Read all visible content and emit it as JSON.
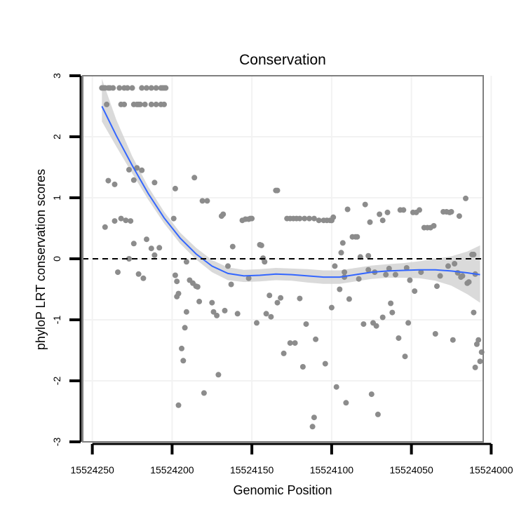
{
  "chart_data": {
    "type": "scatter",
    "title": "Conservation",
    "xlabel": "Genomic Position",
    "ylabel": "phyloP LRT conservation scores",
    "x_reversed": true,
    "xlim": [
      15524005,
      15524256
    ],
    "ylim": [
      -3,
      3
    ],
    "x_ticks": [
      15524250,
      15524200,
      15524150,
      15524100,
      15524050,
      15524000
    ],
    "x_tick_labels": [
      "15524250",
      "15524200",
      "15524150",
      "15524100",
      "15524050",
      "15524000"
    ],
    "y_ticks": [
      -3,
      -2,
      -1,
      0,
      1,
      2,
      3
    ],
    "y_tick_labels": [
      "-3",
      "-2",
      "-1",
      "0",
      "1",
      "2",
      "3"
    ],
    "reference_line": {
      "y": 0,
      "style": "dashed"
    },
    "colors": {
      "points": "#8c8c8c",
      "smooth": "#3366ff",
      "band": "#d3d3d3",
      "border": "#7f7f7f",
      "grid": "#f2f2f2"
    },
    "points": [
      [
        15524244,
        2.8
      ],
      [
        15524243,
        2.8
      ],
      [
        15524242,
        2.8
      ],
      [
        15524240,
        2.8
      ],
      [
        15524239,
        2.8
      ],
      [
        15524237,
        2.8
      ],
      [
        15524233,
        2.8
      ],
      [
        15524230,
        2.8
      ],
      [
        15524228,
        2.8
      ],
      [
        15524225,
        2.8
      ],
      [
        15524219,
        2.8
      ],
      [
        15524216,
        2.8
      ],
      [
        15524213,
        2.8
      ],
      [
        15524210,
        2.8
      ],
      [
        15524207,
        2.8
      ],
      [
        15524206,
        2.8
      ],
      [
        15524205,
        2.8
      ],
      [
        15524204,
        2.8
      ],
      [
        15524241,
        2.53
      ],
      [
        15524232,
        2.53
      ],
      [
        15524230,
        2.53
      ],
      [
        15524224,
        2.53
      ],
      [
        15524222,
        2.53
      ],
      [
        15524221,
        2.53
      ],
      [
        15524220,
        2.53
      ],
      [
        15524217,
        2.53
      ],
      [
        15524213,
        2.53
      ],
      [
        15524210,
        2.53
      ],
      [
        15524207,
        2.53
      ],
      [
        15524205,
        2.53
      ],
      [
        15524240,
        1.28
      ],
      [
        15524236,
        1.22
      ],
      [
        15524227,
        1.46
      ],
      [
        15524222,
        1.49
      ],
      [
        15524219,
        1.45
      ],
      [
        15524224,
        1.29
      ],
      [
        15524211,
        1.25
      ],
      [
        15524198,
        1.15
      ],
      [
        15524186,
        1.33
      ],
      [
        15524242,
        0.52
      ],
      [
        15524236,
        0.62
      ],
      [
        15524232,
        0.66
      ],
      [
        15524229,
        0.63
      ],
      [
        15524226,
        0.62
      ],
      [
        15524234,
        -0.22
      ],
      [
        15524227,
        0.0
      ],
      [
        15524224,
        0.25
      ],
      [
        15524221,
        -0.25
      ],
      [
        15524218,
        -0.32
      ],
      [
        15524216,
        0.32
      ],
      [
        15524213,
        0.17
      ],
      [
        15524211,
        0.06
      ],
      [
        15524208,
        0.18
      ],
      [
        15524199,
        0.66
      ],
      [
        15524198,
        -0.27
      ],
      [
        15524197,
        -0.37
      ],
      [
        15524197,
        -0.62
      ],
      [
        15524196,
        -0.57
      ],
      [
        15524194,
        -1.47
      ],
      [
        15524193,
        -1.67
      ],
      [
        15524196,
        -2.4
      ],
      [
        15524192,
        -1.13
      ],
      [
        15524191,
        -0.87
      ],
      [
        15524191,
        -0.05
      ],
      [
        15524189,
        -0.35
      ],
      [
        15524187,
        -0.4
      ],
      [
        15524185,
        -0.45
      ],
      [
        15524184,
        -0.46
      ],
      [
        15524183,
        -0.7
      ],
      [
        15524181,
        0.95
      ],
      [
        15524178,
        0.95
      ],
      [
        15524180,
        -2.2
      ],
      [
        15524175,
        -0.72
      ],
      [
        15524174,
        -0.87
      ],
      [
        15524172,
        -0.93
      ],
      [
        15524171,
        -1.9
      ],
      [
        15524169,
        0.7
      ],
      [
        15524168,
        0.73
      ],
      [
        15524167,
        -0.85
      ],
      [
        15524165,
        -0.12
      ],
      [
        15524163,
        -0.42
      ],
      [
        15524162,
        0.2
      ],
      [
        15524159,
        -0.9
      ],
      [
        15524156,
        0.63
      ],
      [
        15524154,
        0.65
      ],
      [
        15524152,
        0.65
      ],
      [
        15524151,
        0.66
      ],
      [
        15524150,
        0.66
      ],
      [
        15524152,
        -0.32
      ],
      [
        15524147,
        -1.05
      ],
      [
        15524145,
        0.23
      ],
      [
        15524144,
        0.22
      ],
      [
        15524143,
        0.01
      ],
      [
        15524142,
        -0.05
      ],
      [
        15524141,
        -0.9
      ],
      [
        15524139,
        -0.6
      ],
      [
        15524138,
        -0.95
      ],
      [
        15524135,
        1.12
      ],
      [
        15524134,
        1.12
      ],
      [
        15524134,
        -0.72
      ],
      [
        15524132,
        -0.64
      ],
      [
        15524130,
        -1.55
      ],
      [
        15524128,
        0.66
      ],
      [
        15524126,
        0.66
      ],
      [
        15524124,
        0.66
      ],
      [
        15524122,
        0.66
      ],
      [
        15524126,
        -1.38
      ],
      [
        15524123,
        -1.38
      ],
      [
        15524120,
        0.66
      ],
      [
        15524117,
        0.66
      ],
      [
        15524114,
        0.66
      ],
      [
        15524111,
        0.66
      ],
      [
        15524108,
        0.63
      ],
      [
        15524105,
        0.63
      ],
      [
        15524103,
        0.63
      ],
      [
        15524101,
        0.63
      ],
      [
        15524100,
        0.63
      ],
      [
        15524120,
        -0.65
      ],
      [
        15524118,
        -1.77
      ],
      [
        15524116,
        -1.07
      ],
      [
        15524110,
        -1.32
      ],
      [
        15524112,
        -2.75
      ],
      [
        15524111,
        -2.6
      ],
      [
        15524104,
        -1.72
      ],
      [
        15524100,
        -0.8
      ],
      [
        15524100,
        0.63
      ],
      [
        15524099,
        0.68
      ],
      [
        15524098,
        -0.12
      ],
      [
        15524097,
        -2.1
      ],
      [
        15524095,
        -0.5
      ],
      [
        15524094,
        0.1
      ],
      [
        15524093,
        0.26
      ],
      [
        15524092,
        -0.22
      ],
      [
        15524092,
        -0.3
      ],
      [
        15524091,
        -2.36
      ],
      [
        15524090,
        0.81
      ],
      [
        15524089,
        -0.66
      ],
      [
        15524087,
        0.36
      ],
      [
        15524085,
        0.36
      ],
      [
        15524084,
        0.36
      ],
      [
        15524083,
        -0.33
      ],
      [
        15524082,
        0.03
      ],
      [
        15524080,
        -1.07
      ],
      [
        15524079,
        0.89
      ],
      [
        15524077,
        -0.18
      ],
      [
        15524077,
        0.05
      ],
      [
        15524076,
        0.6
      ],
      [
        15524075,
        -2.22
      ],
      [
        15524074,
        -1.05
      ],
      [
        15524073,
        -0.22
      ],
      [
        15524072,
        -1.1
      ],
      [
        15524071,
        -2.55
      ],
      [
        15524070,
        0.73
      ],
      [
        15524068,
        -0.96
      ],
      [
        15524068,
        0.63
      ],
      [
        15524066,
        -0.26
      ],
      [
        15524065,
        0.76
      ],
      [
        15524064,
        -0.16
      ],
      [
        15524063,
        -0.73
      ],
      [
        15524062,
        -0.88
      ],
      [
        15524060,
        -0.26
      ],
      [
        15524058,
        -1.3
      ],
      [
        15524057,
        0.8
      ],
      [
        15524055,
        0.8
      ],
      [
        15524054,
        -1.6
      ],
      [
        15524053,
        -0.15
      ],
      [
        15524052,
        -1.05
      ],
      [
        15524051,
        -0.35
      ],
      [
        15524049,
        0.76
      ],
      [
        15524048,
        -0.53
      ],
      [
        15524047,
        0.76
      ],
      [
        15524045,
        0.8
      ],
      [
        15524044,
        -0.22
      ],
      [
        15524042,
        0.51
      ],
      [
        15524040,
        0.51
      ],
      [
        15524038,
        0.51
      ],
      [
        15524036,
        0.54
      ],
      [
        15524034,
        -0.45
      ],
      [
        15524035,
        -1.23
      ],
      [
        15524032,
        -0.28
      ],
      [
        15524030,
        0.77
      ],
      [
        15524028,
        0.77
      ],
      [
        15524027,
        -0.12
      ],
      [
        15524026,
        0.76
      ],
      [
        15524025,
        0.77
      ],
      [
        15524024,
        -1.33
      ],
      [
        15524023,
        -0.08
      ],
      [
        15524021,
        -0.23
      ],
      [
        15524020,
        0.7
      ],
      [
        15524019,
        -0.3
      ],
      [
        15524018,
        -0.28
      ],
      [
        15524016,
        0.99
      ],
      [
        15524015,
        -0.4
      ],
      [
        15524014,
        -0.38
      ],
      [
        15524012,
        0.07
      ],
      [
        15524011,
        0.07
      ],
      [
        15524011,
        -0.88
      ],
      [
        15524010,
        -1.78
      ],
      [
        15524009,
        -1.4
      ],
      [
        15524008,
        -1.33
      ],
      [
        15524007,
        -1.68
      ],
      [
        15524006,
        -1.53
      ],
      [
        15524010,
        -0.25
      ]
    ],
    "smooth": {
      "x": [
        15524244,
        15524235,
        15524225,
        15524215,
        15524205,
        15524195,
        15524185,
        15524175,
        15524165,
        15524155,
        15524145,
        15524135,
        15524125,
        15524115,
        15524105,
        15524095,
        15524085,
        15524075,
        15524065,
        15524055,
        15524045,
        15524035,
        15524025,
        15524015,
        15524007
      ],
      "y": [
        2.5,
        2.02,
        1.53,
        1.07,
        0.67,
        0.34,
        0.08,
        -0.12,
        -0.24,
        -0.28,
        -0.27,
        -0.25,
        -0.26,
        -0.28,
        -0.3,
        -0.3,
        -0.26,
        -0.22,
        -0.2,
        -0.19,
        -0.18,
        -0.18,
        -0.2,
        -0.23,
        -0.26
      ],
      "lo": [
        2.25,
        1.84,
        1.4,
        0.97,
        0.58,
        0.25,
        -0.01,
        -0.22,
        -0.35,
        -0.38,
        -0.37,
        -0.35,
        -0.36,
        -0.39,
        -0.41,
        -0.41,
        -0.37,
        -0.33,
        -0.31,
        -0.31,
        -0.32,
        -0.36,
        -0.44,
        -0.58,
        -0.72
      ],
      "hi": [
        2.95,
        2.28,
        1.68,
        1.18,
        0.77,
        0.43,
        0.18,
        -0.02,
        -0.14,
        -0.18,
        -0.17,
        -0.15,
        -0.16,
        -0.17,
        -0.19,
        -0.19,
        -0.15,
        -0.11,
        -0.09,
        -0.07,
        -0.04,
        0.0,
        0.04,
        0.12,
        0.22
      ]
    }
  }
}
